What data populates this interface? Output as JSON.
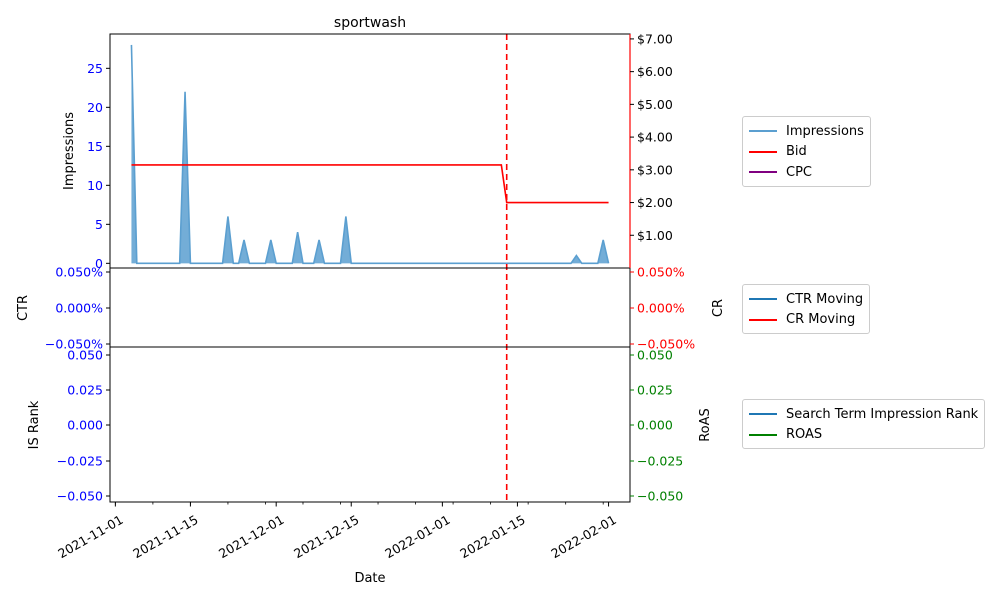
{
  "chart_data": {
    "type": "line",
    "title": "sportwash",
    "x_dates": [
      "2021-11-04",
      "2021-11-05",
      "2021-11-06",
      "2021-11-07",
      "2021-11-08",
      "2021-11-09",
      "2021-11-10",
      "2021-11-11",
      "2021-11-12",
      "2021-11-13",
      "2021-11-14",
      "2021-11-15",
      "2021-11-16",
      "2021-11-17",
      "2021-11-18",
      "2021-11-19",
      "2021-11-20",
      "2021-11-21",
      "2021-11-22",
      "2021-11-23",
      "2021-11-24",
      "2021-11-25",
      "2021-11-26",
      "2021-11-27",
      "2021-11-28",
      "2021-11-29",
      "2021-11-30",
      "2021-12-01",
      "2021-12-02",
      "2021-12-03",
      "2021-12-04",
      "2021-12-05",
      "2021-12-06",
      "2021-12-07",
      "2021-12-08",
      "2021-12-09",
      "2021-12-10",
      "2021-12-11",
      "2021-12-12",
      "2021-12-13",
      "2021-12-14",
      "2021-12-15",
      "2021-12-16",
      "2021-12-17",
      "2021-12-18",
      "2021-12-19",
      "2021-12-20",
      "2021-12-21",
      "2021-12-22",
      "2021-12-23",
      "2021-12-24",
      "2021-12-25",
      "2021-12-26",
      "2021-12-27",
      "2021-12-28",
      "2021-12-29",
      "2021-12-30",
      "2021-12-31",
      "2022-01-01",
      "2022-01-02",
      "2022-01-03",
      "2022-01-04",
      "2022-01-05",
      "2022-01-06",
      "2022-01-07",
      "2022-01-08",
      "2022-01-09",
      "2022-01-10",
      "2022-01-11",
      "2022-01-12",
      "2022-01-13",
      "2022-01-14",
      "2022-01-15",
      "2022-01-16",
      "2022-01-17",
      "2022-01-18",
      "2022-01-19",
      "2022-01-20",
      "2022-01-21",
      "2022-01-22",
      "2022-01-23",
      "2022-01-24",
      "2022-01-25",
      "2022-01-26",
      "2022-01-27",
      "2022-01-28",
      "2022-01-29",
      "2022-01-30",
      "2022-01-31",
      "2022-02-01"
    ],
    "impressions": [
      28,
      0,
      0,
      0,
      0,
      0,
      0,
      0,
      0,
      0,
      22,
      0,
      0,
      0,
      0,
      0,
      0,
      0,
      6,
      0,
      0,
      3,
      0,
      0,
      0,
      0,
      3,
      0,
      0,
      0,
      0,
      4,
      0,
      0,
      0,
      3,
      0,
      0,
      0,
      0,
      6,
      0,
      0,
      0,
      0,
      0,
      0,
      0,
      0,
      0,
      0,
      0,
      0,
      0,
      0,
      0,
      0,
      0,
      0,
      0,
      0,
      0,
      0,
      0,
      0,
      0,
      0,
      0,
      0,
      0,
      0,
      0,
      0,
      0,
      0,
      0,
      0,
      0,
      0,
      0,
      0,
      0,
      0,
      1,
      0,
      0,
      0,
      0,
      3,
      0,
      0
    ],
    "bid_segments": [
      {
        "from": "2021-11-04",
        "to": "2022-01-12",
        "value": 3.15
      },
      {
        "from": "2022-01-13",
        "to": "2022-02-01",
        "value": 2.0
      }
    ],
    "bid_change_date": "2022-01-13",
    "panel1": {
      "ylabel_left": "Impressions",
      "ylim_left": [
        -0.6,
        29.4
      ],
      "yticks_left": [
        0,
        5,
        10,
        15,
        20,
        25
      ],
      "ylabel_right": "",
      "ylim_right": [
        0,
        7.15
      ],
      "yticks_right": [
        "$1.00",
        "$2.00",
        "$3.00",
        "$4.00",
        "$5.00",
        "$6.00",
        "$7.00"
      ]
    },
    "panel2": {
      "ylabel_left": "CTR",
      "ylabel_right": "CR",
      "yticks_left": [
        "0.050%",
        "0.000%",
        "−0.050%"
      ],
      "yticks_right": [
        "0.050%",
        "0.000%",
        "−0.050%"
      ]
    },
    "panel3": {
      "ylabel_left": "IS Rank",
      "ylabel_right": "RoAS",
      "yticks_left": [
        "0.050",
        "0.025",
        "0.000",
        "−0.025",
        "−0.050"
      ],
      "yticks_right": [
        "0.050",
        "0.025",
        "0.000",
        "−0.025",
        "−0.050"
      ]
    },
    "xlabel": "Date",
    "xticks": [
      "2021-11-01",
      "2021-11-15",
      "2021-12-01",
      "2021-12-15",
      "2022-01-01",
      "2022-01-15",
      "2022-02-01"
    ],
    "legends": [
      [
        {
          "label": "Impressions",
          "color": "#5b9fd0"
        },
        {
          "label": "Bid",
          "color": "#ff0000"
        },
        {
          "label": "CPC",
          "color": "#800080"
        }
      ],
      [
        {
          "label": "CTR Moving",
          "color": "#1f77b4"
        },
        {
          "label": "CR Moving",
          "color": "#ff0000"
        }
      ],
      [
        {
          "label": "Search Term Impression Rank",
          "color": "#1f77b4"
        },
        {
          "label": "ROAS",
          "color": "#008000"
        }
      ]
    ],
    "colors": {
      "impressions": "#5b9fd0",
      "bid": "#ff0000",
      "left_ticks": "#0000ff",
      "right_ticks_p1": "#000000",
      "right_ticks_p2": "#ff0000",
      "right_ticks_p3": "#008000",
      "right_spine_p1": "#ff0000",
      "vline": "#ff0000"
    }
  }
}
